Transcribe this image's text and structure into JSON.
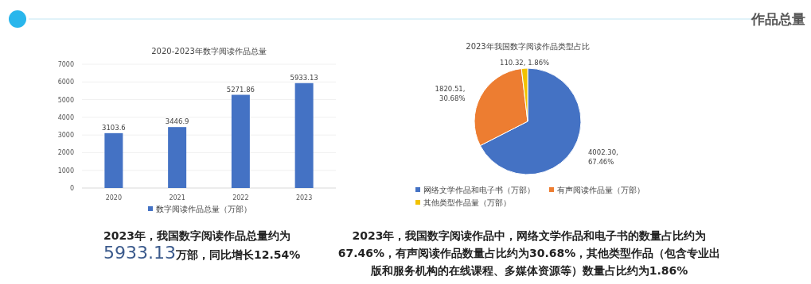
{
  "chart_data": [
    {
      "type": "bar",
      "title": "2020-2023年数字阅读作品总量",
      "categories": [
        "2020",
        "2021",
        "2022",
        "2023"
      ],
      "series": [
        {
          "name": "数字阅读作品总量（万部）",
          "color": "#4472c4",
          "values": [
            3103.6,
            3446.9,
            5271.86,
            5933.13
          ]
        }
      ],
      "ylim": [
        0,
        7000
      ],
      "yticks": [
        0,
        1000,
        2000,
        3000,
        4000,
        5000,
        6000,
        7000
      ],
      "grid": "y",
      "legend": "bottom",
      "data_labels": true,
      "annotations": [
        "作品总量",
        "2023年，我国数字阅读作品总量约为",
        "5933.13",
        "万部，同比增长12.54%"
      ]
    },
    {
      "type": "pie",
      "title": "2023年我国数字阅读作品类型占比",
      "categories": [
        "网络文学作品和电子书（万部）",
        "有声阅读作品量（万部）",
        "其他类型作品量（万部）"
      ],
      "values": [
        4002.3,
        1820.51,
        110.32
      ],
      "colors": [
        "#4472c4",
        "#ed7d31",
        "#f2c200"
      ],
      "value_labels": [
        "4002.30, 67.46%",
        "1820.51, 30.68%",
        "110.32, 1.86%"
      ],
      "legend": "bottom",
      "annotations": [
        "2023年，我国数字阅读作品中，网络文学作品和电子书的数量占比约为67.46%，有声阅读作品数量占比约为30.68%，其他类型作品（包含专业出版和服务机构的在线课程、多媒体资源等）数量占比约为1.86%"
      ]
    }
  ]
}
